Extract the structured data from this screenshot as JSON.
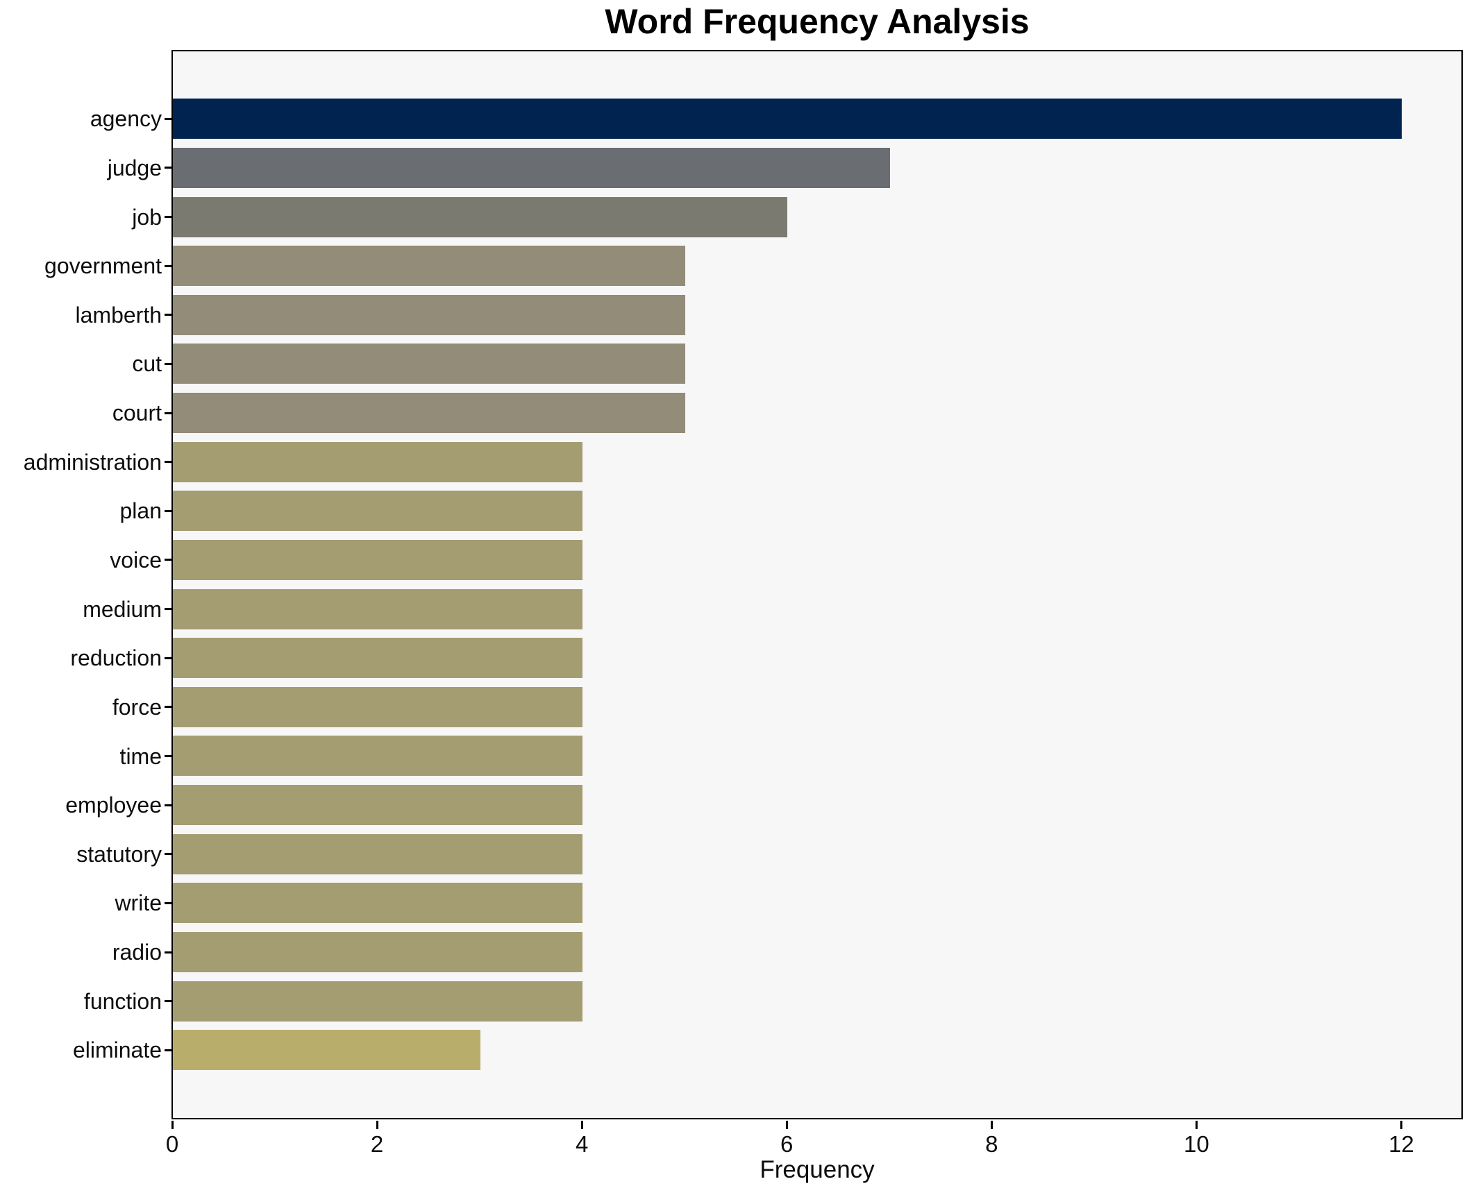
{
  "title": "Word Frequency Analysis",
  "chart_data": {
    "type": "bar",
    "orientation": "horizontal",
    "title": "Word Frequency Analysis",
    "xlabel": "Frequency",
    "ylabel": "",
    "categories": [
      "agency",
      "judge",
      "job",
      "government",
      "lamberth",
      "cut",
      "court",
      "administration",
      "plan",
      "voice",
      "medium",
      "reduction",
      "force",
      "time",
      "employee",
      "statutory",
      "write",
      "radio",
      "function",
      "eliminate"
    ],
    "values": [
      12,
      7,
      6,
      5,
      5,
      5,
      5,
      4,
      4,
      4,
      4,
      4,
      4,
      4,
      4,
      4,
      4,
      4,
      4,
      3
    ],
    "bar_colors": [
      "#002350",
      "#6a6d72",
      "#7b7a71",
      "#928c78",
      "#928c78",
      "#928c78",
      "#928c78",
      "#a49d72",
      "#a49d72",
      "#a49d72",
      "#a49d72",
      "#a49d72",
      "#a49d72",
      "#a49d72",
      "#a49d72",
      "#a49d72",
      "#a49d72",
      "#a49d72",
      "#a49d72",
      "#b9ad6b"
    ],
    "x_ticks": [
      0,
      2,
      4,
      6,
      8,
      10,
      12
    ],
    "xlim": [
      0,
      12.58
    ],
    "grid": false,
    "legend_position": "none",
    "plot_background": "#f7f7f8",
    "figure_background": "#ffffff",
    "spine_color": "#000000"
  }
}
